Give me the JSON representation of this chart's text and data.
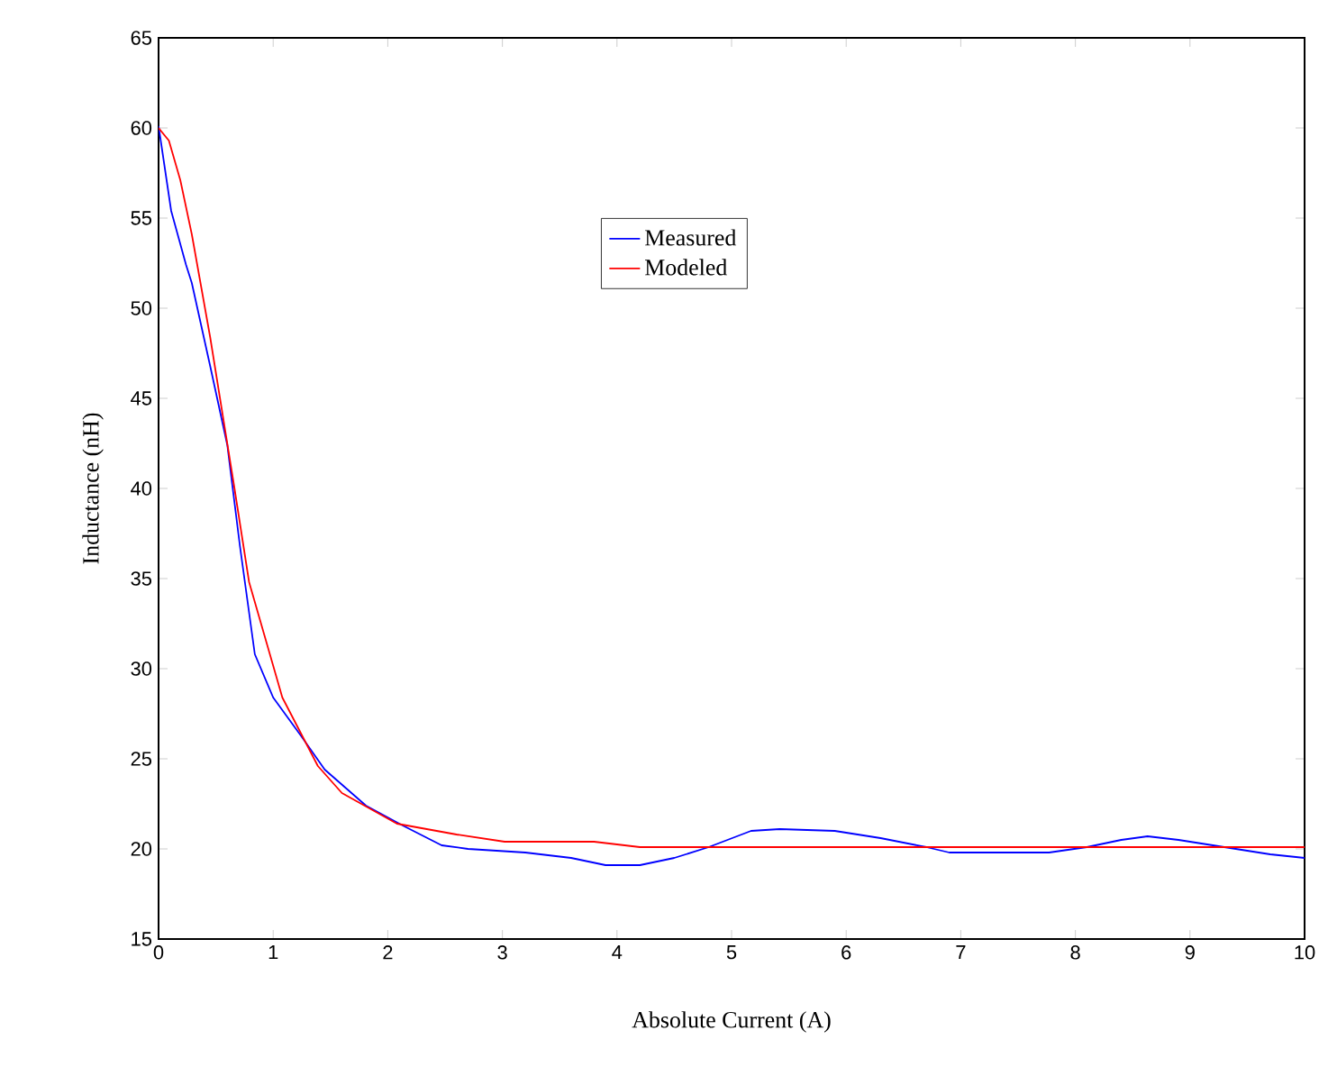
{
  "chart_data": {
    "type": "line",
    "xlabel": "Absolute Current (A)",
    "ylabel": "Inductance (nH)",
    "xlim": [
      0,
      10
    ],
    "ylim": [
      15,
      65
    ],
    "xticks": [
      0,
      1,
      2,
      3,
      4,
      5,
      6,
      7,
      8,
      9,
      10
    ],
    "yticks": [
      15,
      20,
      25,
      30,
      35,
      40,
      45,
      50,
      55,
      60,
      65
    ],
    "grid": false,
    "legend": "top",
    "marker": "none",
    "line_style": "solid",
    "series": [
      {
        "name": "Measured",
        "color": "#0000ff",
        "x": [
          0,
          0.11,
          0.24,
          0.29,
          0.45,
          0.6,
          0.71,
          0.84,
          1.0,
          1.24,
          1.45,
          1.81,
          2.13,
          2.47,
          2.7,
          3.2,
          3.6,
          3.9,
          4.2,
          4.5,
          4.8,
          5.17,
          5.42,
          5.9,
          6.3,
          6.7,
          6.9,
          7.4,
          7.77,
          8.1,
          8.4,
          8.63,
          8.9,
          9.3,
          9.7,
          10
        ],
        "values": [
          60.1,
          55.4,
          52.4,
          51.4,
          46.8,
          42.4,
          36.8,
          30.8,
          28.4,
          26.3,
          24.4,
          22.4,
          21.3,
          20.2,
          20,
          19.8,
          19.5,
          19.1,
          19.1,
          19.5,
          20.1,
          21,
          21.1,
          21,
          20.6,
          20.1,
          19.8,
          19.8,
          19.8,
          20.1,
          20.5,
          20.7,
          20.5,
          20.1,
          19.7,
          19.5
        ]
      },
      {
        "name": "Modeled",
        "color": "#ff0000",
        "x": [
          0,
          0.09,
          0.19,
          0.29,
          0.45,
          0.66,
          0.79,
          1.08,
          1.39,
          1.6,
          2.08,
          2.6,
          3.02,
          3.8,
          4.2,
          5,
          6,
          7,
          8,
          9,
          10
        ],
        "values": [
          60,
          59.3,
          57.1,
          54.1,
          48.4,
          40.1,
          34.8,
          28.4,
          24.6,
          23.1,
          21.4,
          20.8,
          20.4,
          20.4,
          20.1,
          20.1,
          20.1,
          20.1,
          20.1,
          20.1,
          20.1
        ]
      }
    ]
  }
}
